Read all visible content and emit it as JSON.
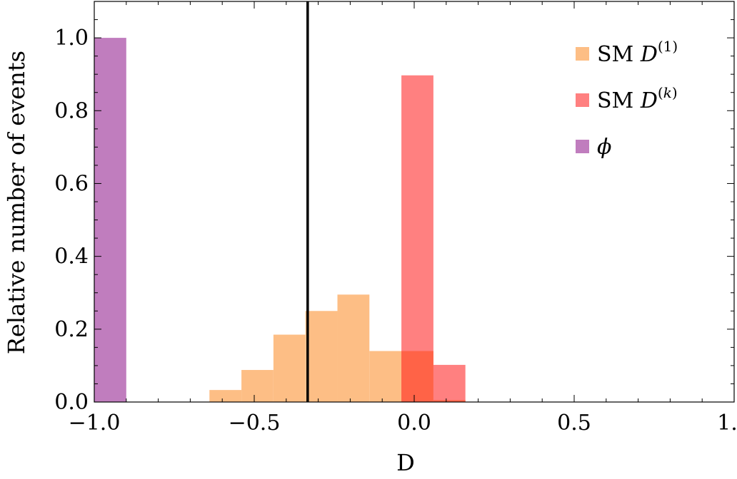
{
  "chart_data": {
    "type": "bar",
    "xlabel": "D",
    "ylabel": "Relative number of events",
    "xlim": [
      -1.0,
      1.0
    ],
    "ylim": [
      0.0,
      1.1
    ],
    "x_ticks": [
      "−1.0",
      "−0.5",
      "0.0",
      "0.5",
      "1.0"
    ],
    "x_tick_values": [
      -1.0,
      -0.5,
      0.0,
      0.5,
      1.0
    ],
    "y_ticks": [
      "0.0",
      "0.2",
      "0.4",
      "0.6",
      "0.8",
      "1.0"
    ],
    "y_tick_values": [
      0.0,
      0.2,
      0.4,
      0.6,
      0.8,
      1.0
    ],
    "bin_edges": [
      -1.0,
      -0.9,
      -0.8,
      -0.7,
      -0.6,
      -0.5,
      -0.4,
      -0.3,
      -0.2,
      -0.1,
      0.0,
      0.1,
      0.2,
      0.3,
      0.4,
      0.5,
      0.6,
      0.7,
      0.8,
      0.9,
      1.0
    ],
    "vertical_line_x": -0.333,
    "legend_position": "top-right",
    "series": [
      {
        "name": "SM D(1)",
        "legend_prefix": "SM ",
        "legend_symbol": "D",
        "legend_sup": "(1)",
        "color": "#FDBE85",
        "bins": [
          [
            -0.64,
            -0.54,
            0.033
          ],
          [
            -0.54,
            -0.44,
            0.088
          ],
          [
            -0.44,
            -0.34,
            0.185
          ],
          [
            -0.34,
            -0.24,
            0.25
          ],
          [
            -0.24,
            -0.14,
            0.295
          ],
          [
            -0.14,
            -0.04,
            0.14
          ]
        ]
      },
      {
        "name": "SM D(k)",
        "legend_prefix": "SM ",
        "legend_symbol": "D",
        "legend_sup": "(k)",
        "color": "#FF8080",
        "bins": [
          [
            -0.04,
            0.06,
            0.897
          ],
          [
            0.06,
            0.16,
            0.102
          ]
        ]
      },
      {
        "name": "ϕ",
        "legend_prefix": "",
        "legend_symbol": "ϕ",
        "legend_sup": "",
        "color": "#C07DBE",
        "bins": [
          [
            -1.0,
            -0.9,
            1.0
          ]
        ]
      }
    ],
    "overlap": {
      "color": "#FF6347",
      "bins": [
        [
          -0.04,
          0.06,
          0.14
        ],
        [
          0.06,
          0.16,
          0.005
        ]
      ]
    }
  }
}
